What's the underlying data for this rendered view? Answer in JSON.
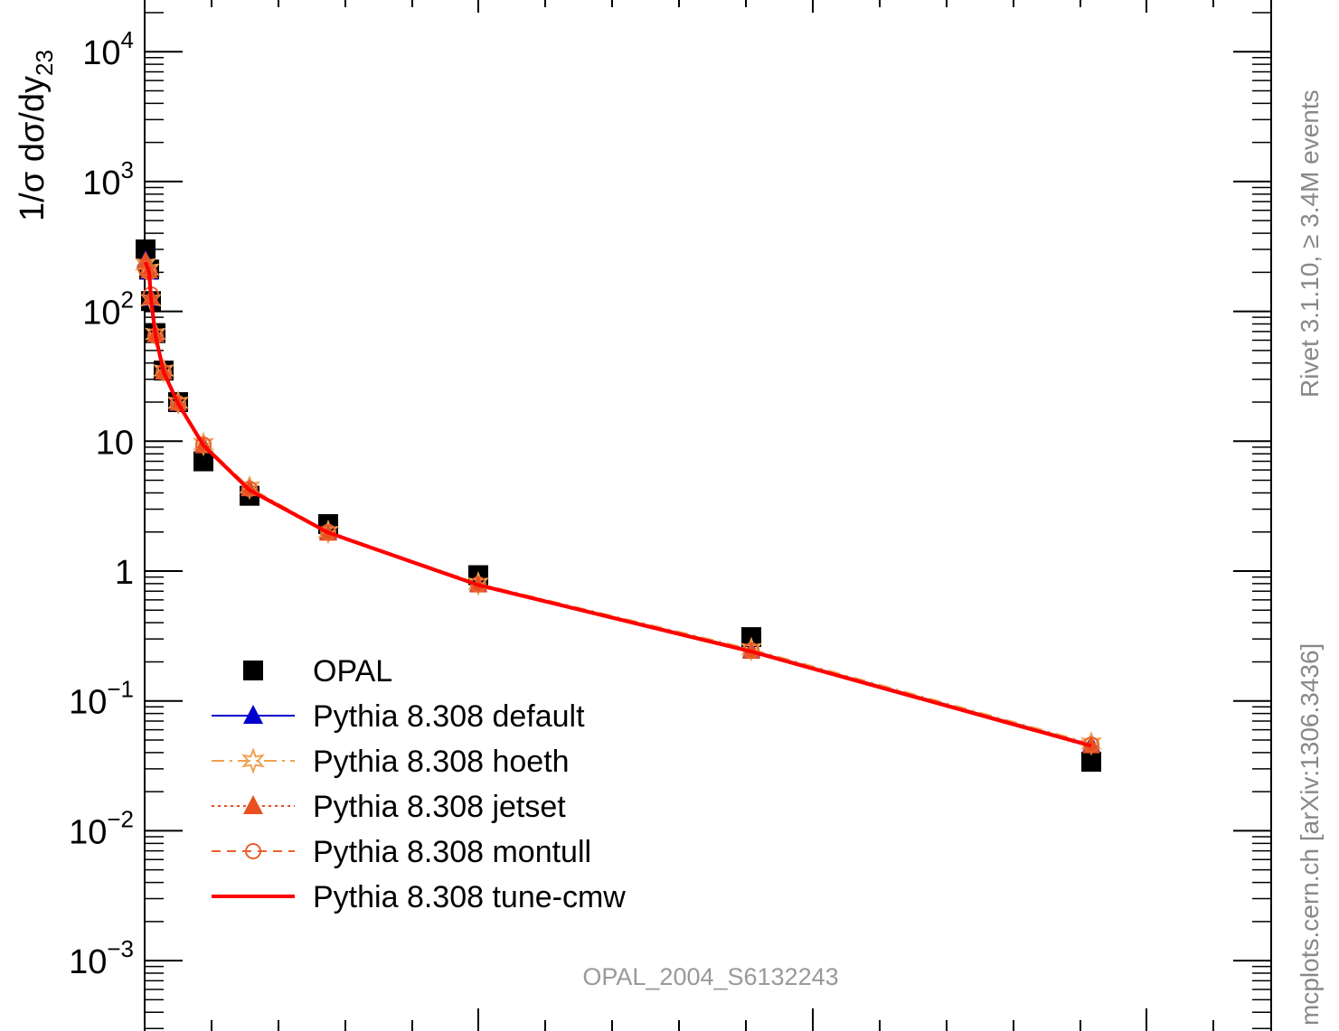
{
  "chart_data": {
    "type": "line",
    "title": "",
    "ylabel": "1/σ dσ/dy",
    "ylabel_sub": "23",
    "xlabel": "",
    "yscale": "log",
    "ylim": [
      0.0003,
      30000
    ],
    "xlim": [
      0,
      0.33
    ],
    "y_tick_labels": [
      {
        "value": 10000,
        "base": "10",
        "exp": "4"
      },
      {
        "value": 1000,
        "base": "10",
        "exp": "3"
      },
      {
        "value": 100,
        "base": "10",
        "exp": "2"
      },
      {
        "value": 10,
        "base": "10",
        "exp": ""
      },
      {
        "value": 1,
        "base": "1",
        "exp": ""
      },
      {
        "value": 0.1,
        "base": "10",
        "exp": "−1"
      },
      {
        "value": 0.01,
        "base": "10",
        "exp": "−2"
      },
      {
        "value": 0.001,
        "base": "10",
        "exp": "−3"
      }
    ],
    "series": [
      {
        "name": "OPAL",
        "style": "data",
        "color": "#000000",
        "x": [
          0.0002,
          0.0007,
          0.0015,
          0.0025,
          0.0045,
          0.0085,
          0.0145,
          0.0285,
          0.0525,
          0.0895,
          0.1495,
          0.2395
        ],
        "y": [
          300,
          210,
          120,
          68,
          35,
          20,
          7,
          3.8,
          2.3,
          0.93,
          0.31,
          0.034
        ]
      },
      {
        "name": "Pythia 8.308 default",
        "style": "line-triangle",
        "color": "#0000cc",
        "x": [
          0.0002,
          0.0007,
          0.0015,
          0.0025,
          0.0045,
          0.0085,
          0.0145,
          0.0285,
          0.0525,
          0.0895,
          0.1495,
          0.2395
        ],
        "y": [
          250,
          200,
          125,
          66,
          34,
          19.5,
          9.3,
          4.3,
          2.0,
          0.79,
          0.245,
          0.046
        ]
      },
      {
        "name": "Pythia 8.308 hoeth",
        "style": "dashdot-star",
        "color": "#f0a050",
        "x": [
          0.0002,
          0.0007,
          0.0015,
          0.0025,
          0.0045,
          0.0085,
          0.0145,
          0.0285,
          0.0525,
          0.0895,
          0.1495,
          0.2395
        ],
        "y": [
          230,
          210,
          122,
          67,
          35,
          19.8,
          9.5,
          4.4,
          2.0,
          0.8,
          0.25,
          0.047
        ]
      },
      {
        "name": "Pythia 8.308 jetset",
        "style": "dotted-triangle",
        "color": "#e85020",
        "x": [
          0.0002,
          0.0007,
          0.0015,
          0.0025,
          0.0045,
          0.0085,
          0.0145,
          0.0285,
          0.0525,
          0.0895,
          0.1495,
          0.2395
        ],
        "y": [
          245,
          205,
          128,
          66,
          34,
          19.6,
          9.2,
          4.3,
          1.95,
          0.78,
          0.24,
          0.045
        ]
      },
      {
        "name": "Pythia 8.308 montull",
        "style": "dashed-circle",
        "color": "#e86030",
        "x": [
          0.0002,
          0.0007,
          0.0015,
          0.0025,
          0.0045,
          0.0085,
          0.0145,
          0.0285,
          0.0525,
          0.0895,
          0.1495,
          0.2395
        ],
        "y": [
          215,
          200,
          135,
          65,
          34,
          19.6,
          9.4,
          4.3,
          2.0,
          0.79,
          0.245,
          0.046
        ]
      },
      {
        "name": "Pythia 8.308 tune-cmw",
        "style": "solid",
        "color": "#ff0000",
        "x": [
          0.0002,
          0.0007,
          0.0015,
          0.0025,
          0.0045,
          0.0085,
          0.0145,
          0.0285,
          0.0525,
          0.0895,
          0.1495,
          0.2395
        ],
        "y": [
          240,
          200,
          125,
          65,
          34,
          19.5,
          9.3,
          4.2,
          1.98,
          0.78,
          0.24,
          0.045
        ]
      }
    ],
    "annotations": {
      "analysis_id": "OPAL_2004_S6132243",
      "side_top": "Rivet 3.1.10, ≥ 3.4M events",
      "side_bottom": "mcplots.cern.ch [arXiv:1306.3436]"
    }
  }
}
